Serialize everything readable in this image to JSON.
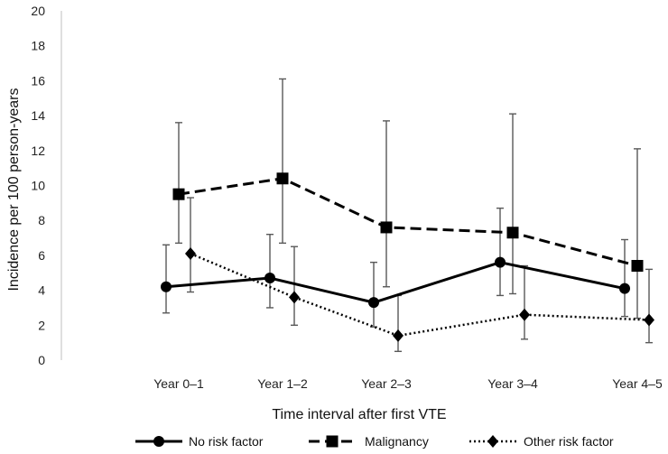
{
  "chart_data": {
    "type": "line",
    "title": "",
    "xlabel": "Time interval after first VTE",
    "ylabel": "Incidence per 100 person-years",
    "ylim": [
      0,
      20
    ],
    "yticks": [
      0,
      2,
      4,
      6,
      8,
      10,
      12,
      14,
      16,
      18,
      20
    ],
    "grid": false,
    "legend_position": "bottom",
    "categories": [
      "Year 0–1",
      "Year 1–2",
      "Year 2–3",
      "Year 3–4",
      "Year 4–5"
    ],
    "series": [
      {
        "name": "No risk factor",
        "style": "solid",
        "marker": "circle",
        "values": [
          4.2,
          4.7,
          3.3,
          5.6,
          4.1
        ],
        "lower": [
          2.7,
          3.0,
          1.9,
          3.7,
          2.5
        ],
        "upper": [
          6.6,
          7.2,
          5.6,
          8.7,
          6.9
        ]
      },
      {
        "name": "Malignancy",
        "style": "dashed",
        "marker": "square",
        "values": [
          9.5,
          10.4,
          7.6,
          7.3,
          5.4
        ],
        "lower": [
          6.7,
          6.7,
          4.2,
          3.8,
          2.4
        ],
        "upper": [
          13.6,
          16.1,
          13.7,
          14.1,
          12.1
        ]
      },
      {
        "name": "Other risk factor",
        "style": "dotted",
        "marker": "diamond",
        "values": [
          6.1,
          3.6,
          1.4,
          2.6,
          2.3
        ],
        "lower": [
          3.9,
          2.0,
          0.5,
          1.2,
          1.0
        ],
        "upper": [
          9.3,
          6.5,
          3.7,
          5.4,
          5.2
        ]
      }
    ],
    "colors": {
      "line": "#000000",
      "errorbar": "#595959",
      "axis": "#bfbfbf"
    }
  }
}
